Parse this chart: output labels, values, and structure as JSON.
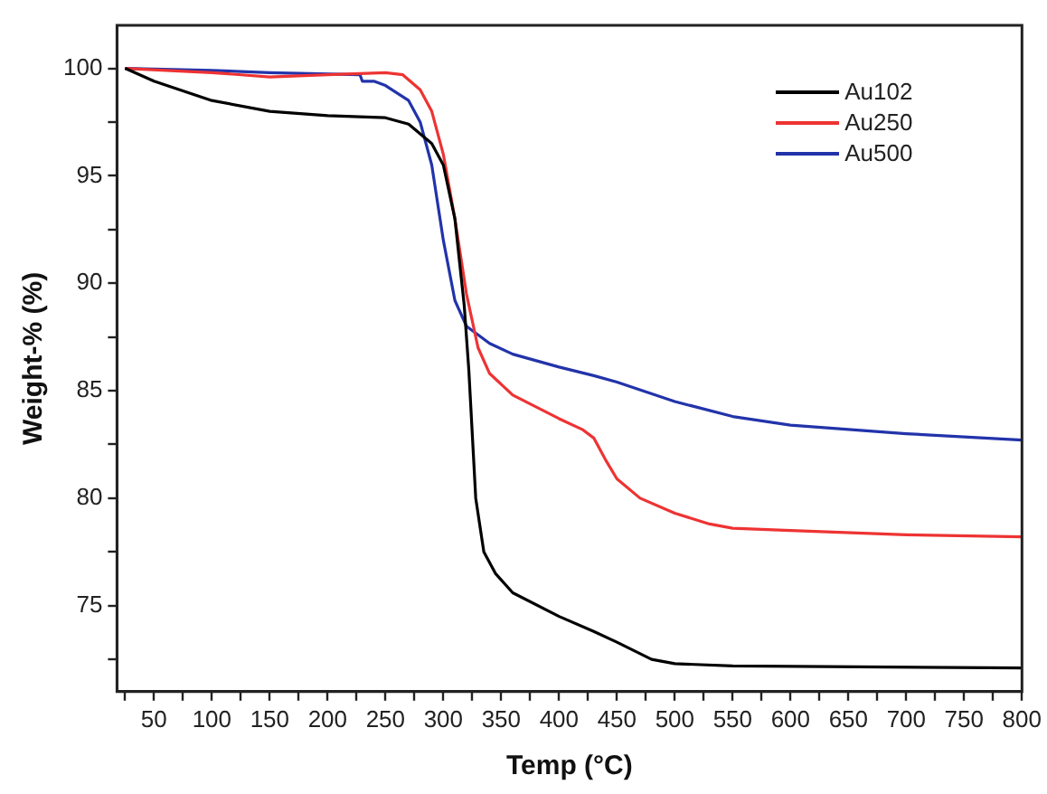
{
  "chart_data": {
    "type": "line",
    "xlabel": "Temp (°C)",
    "ylabel": "Weight-% (%)",
    "xlim": [
      18,
      800
    ],
    "ylim": [
      71,
      102
    ],
    "xticks": [
      {
        "value": 25,
        "label": null
      },
      50,
      {
        "value": 75,
        "label": null
      },
      100,
      {
        "value": 125,
        "label": null
      },
      150,
      {
        "value": 175,
        "label": null
      },
      200,
      {
        "value": 225,
        "label": null
      },
      250,
      {
        "value": 275,
        "label": null
      },
      300,
      {
        "value": 325,
        "label": null
      },
      350,
      {
        "value": 375,
        "label": null
      },
      400,
      {
        "value": 425,
        "label": null
      },
      450,
      {
        "value": 475,
        "label": null
      },
      500,
      {
        "value": 525,
        "label": null
      },
      550,
      {
        "value": 575,
        "label": null
      },
      600,
      {
        "value": 625,
        "label": null
      },
      650,
      {
        "value": 675,
        "label": null
      },
      700,
      {
        "value": 725,
        "label": null
      },
      750,
      {
        "value": 775,
        "label": null
      },
      800
    ],
    "yticks": [
      {
        "value": 72.5,
        "label": null
      },
      75,
      {
        "value": 77.5,
        "label": null
      },
      80,
      {
        "value": 82.5,
        "label": null
      },
      85,
      {
        "value": 87.5,
        "label": null
      },
      90,
      {
        "value": 92.5,
        "label": null
      },
      95,
      {
        "value": 97.5,
        "label": null
      },
      100
    ],
    "grid": false,
    "legend": "top right",
    "marker": "none",
    "line_style": "solid",
    "series": [
      {
        "name": "Au102",
        "color": "#000000",
        "x": [
          25,
          50,
          100,
          150,
          200,
          250,
          270,
          290,
          300,
          310,
          318,
          322,
          328,
          335,
          345,
          360,
          400,
          430,
          450,
          480,
          500,
          550,
          800
        ],
        "values": [
          100,
          99.4,
          98.5,
          98.0,
          97.8,
          97.7,
          97.4,
          96.5,
          95.5,
          93,
          89,
          86,
          80,
          77.5,
          76.5,
          75.6,
          74.5,
          73.8,
          73.3,
          72.5,
          72.3,
          72.2,
          72.1
        ]
      },
      {
        "name": "Au250",
        "color": "#ee3333",
        "x": [
          25,
          100,
          150,
          200,
          250,
          265,
          280,
          290,
          300,
          310,
          320,
          330,
          340,
          360,
          400,
          420,
          430,
          440,
          450,
          470,
          500,
          530,
          550,
          600,
          700,
          800
        ],
        "values": [
          100,
          99.8,
          99.6,
          99.7,
          99.8,
          99.7,
          99,
          98,
          96,
          93,
          89.5,
          87,
          85.8,
          84.8,
          83.7,
          83.2,
          82.8,
          81.8,
          80.9,
          80,
          79.3,
          78.8,
          78.6,
          78.5,
          78.3,
          78.2
        ]
      },
      {
        "name": "Au500",
        "color": "#2233aa",
        "x": [
          25,
          100,
          150,
          228,
          230,
          240,
          250,
          270,
          280,
          290,
          300,
          310,
          320,
          340,
          360,
          400,
          430,
          450,
          500,
          550,
          600,
          700,
          800
        ],
        "values": [
          100,
          99.9,
          99.8,
          99.7,
          99.4,
          99.4,
          99.2,
          98.5,
          97.5,
          95.5,
          92,
          89.2,
          88,
          87.2,
          86.7,
          86.1,
          85.7,
          85.4,
          84.5,
          83.8,
          83.4,
          83.0,
          82.7
        ]
      }
    ]
  }
}
